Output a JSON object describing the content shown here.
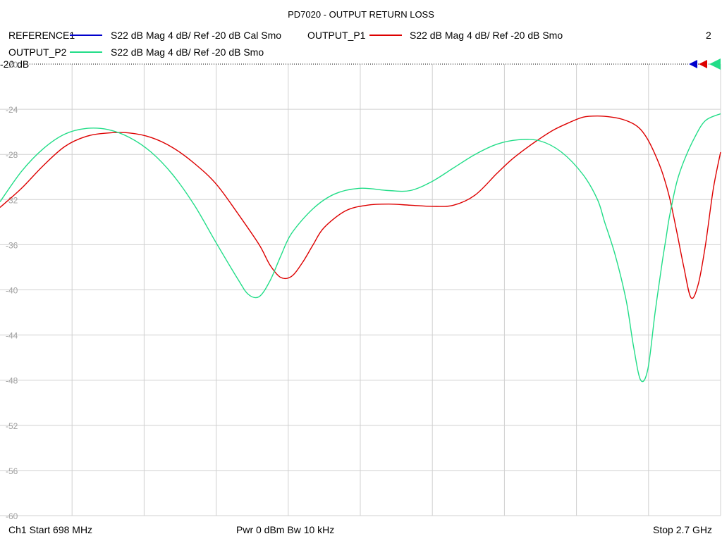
{
  "chart_data": {
    "type": "line",
    "title": "PD7020 - OUTPUT RETURN LOSS",
    "trace_count_label": "2",
    "ref_label": "-20 dB",
    "xlabel": "",
    "ylabel": "",
    "x_units": "MHz",
    "xlim": [
      698,
      2700
    ],
    "ylim": [
      -60,
      -20
    ],
    "yticks": [
      -20,
      -24,
      -28,
      -32,
      -36,
      -40,
      -44,
      -48,
      -52,
      -56,
      -60
    ],
    "ytick_labels": [
      "-20",
      "-24",
      "-28",
      "-32",
      "-36",
      "-40",
      "-44",
      "-48",
      "-52",
      "-56",
      "-60"
    ],
    "grid": true,
    "legend": [
      {
        "name": "REFERENCE1",
        "desc": "S22  dB Mag  4 dB/ Ref -20 dB  Cal Smo",
        "color": "#0000cc"
      },
      {
        "name": "OUTPUT_P1",
        "desc": "S22  dB Mag  4 dB/ Ref -20 dB  Smo",
        "color": "#dd0000"
      },
      {
        "name": "OUTPUT_P2",
        "desc": "S22  dB Mag  4 dB/ Ref -20 dB  Smo",
        "color": "#22dd88"
      }
    ],
    "series": [
      {
        "name": "OUTPUT_P1",
        "color": "#dd0000",
        "x": [
          698,
          758,
          818,
          878,
          938,
          998,
          1058,
          1118,
          1178,
          1238,
          1298,
          1358,
          1418,
          1448,
          1478,
          1508,
          1538,
          1568,
          1598,
          1658,
          1718,
          1778,
          1838,
          1898,
          1958,
          2018,
          2078,
          2118,
          2158,
          2198,
          2238,
          2278,
          2318,
          2358,
          2398,
          2428,
          2458,
          2478,
          2498,
          2518,
          2538,
          2558,
          2578,
          2598,
          2618,
          2638,
          2658,
          2680,
          2700
        ],
        "y": [
          -32.7,
          -31.0,
          -29.0,
          -27.3,
          -26.4,
          -26.1,
          -26.1,
          -26.5,
          -27.4,
          -28.8,
          -30.6,
          -33.2,
          -36.0,
          -37.8,
          -38.9,
          -38.8,
          -37.6,
          -36.0,
          -34.5,
          -33.0,
          -32.5,
          -32.4,
          -32.5,
          -32.6,
          -32.5,
          -31.6,
          -29.7,
          -28.5,
          -27.5,
          -26.6,
          -25.8,
          -25.2,
          -24.7,
          -24.6,
          -24.7,
          -24.9,
          -25.3,
          -25.8,
          -26.7,
          -28.0,
          -29.6,
          -31.8,
          -34.8,
          -38.0,
          -40.7,
          -39.5,
          -36.0,
          -31.0,
          -27.8
        ]
      },
      {
        "name": "OUTPUT_P2",
        "color": "#22dd88",
        "x": [
          698,
          758,
          818,
          878,
          938,
          998,
          1058,
          1118,
          1178,
          1238,
          1298,
          1358,
          1388,
          1418,
          1448,
          1478,
          1508,
          1568,
          1628,
          1698,
          1778,
          1838,
          1898,
          1958,
          2018,
          2078,
          2138,
          2198,
          2258,
          2318,
          2358,
          2378,
          2408,
          2438,
          2458,
          2478,
          2498,
          2518,
          2538,
          2548,
          2558,
          2578,
          2598,
          2628,
          2658,
          2700
        ],
        "y": [
          -32.2,
          -29.5,
          -27.5,
          -26.2,
          -25.7,
          -25.8,
          -26.5,
          -27.8,
          -29.8,
          -32.5,
          -35.8,
          -39.0,
          -40.4,
          -40.6,
          -39.2,
          -37.0,
          -35.0,
          -32.8,
          -31.5,
          -31.0,
          -31.2,
          -31.2,
          -30.4,
          -29.2,
          -28.0,
          -27.1,
          -26.7,
          -26.8,
          -27.8,
          -29.8,
          -32.0,
          -34.0,
          -37.0,
          -41.0,
          -45.0,
          -48.0,
          -47.0,
          -42.0,
          -37.5,
          -35.5,
          -33.5,
          -30.5,
          -28.6,
          -26.5,
          -25.0,
          -24.4
        ]
      }
    ],
    "footer": {
      "start": "Ch1  Start  698 MHz",
      "mid": "Pwr  0 dBm  Bw  10 kHz",
      "stop": "Stop  2.7 GHz"
    }
  }
}
